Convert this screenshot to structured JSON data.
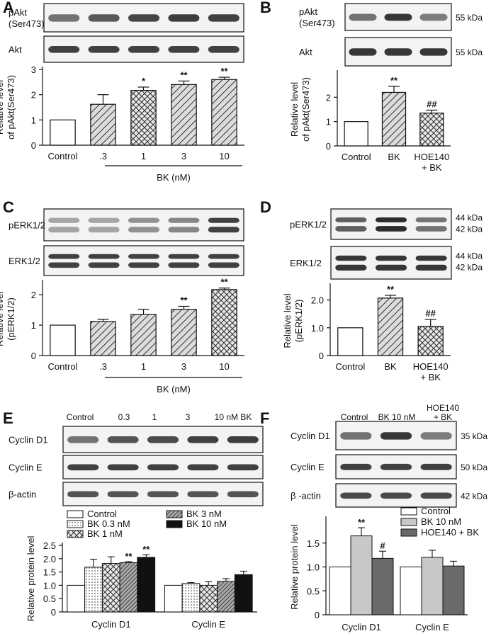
{
  "panels": {
    "A": {
      "letter": "A",
      "blots": [
        {
          "label_lines": [
            "pAkt",
            "(Ser473)"
          ],
          "lanes": 5,
          "bands": 1,
          "shade": [
            0.55,
            0.68,
            0.78,
            0.82,
            0.8
          ]
        },
        {
          "label_lines": [
            "Akt"
          ],
          "lanes": 5,
          "bands": 1,
          "shade": [
            0.8,
            0.8,
            0.8,
            0.8,
            0.8
          ]
        }
      ],
      "ylabel_lines": [
        "Relative level",
        "of pAkt(Ser473)"
      ],
      "group_label": "BK (nM)",
      "chart_data": {
        "type": "bar",
        "categories": [
          "Control",
          ".3",
          "1",
          "3",
          "10"
        ],
        "values": [
          1.0,
          1.62,
          2.17,
          2.4,
          2.6
        ],
        "errors": [
          0,
          0.38,
          0.13,
          0.14,
          0.09
        ],
        "significance": [
          "",
          "",
          "*",
          "**",
          "**"
        ],
        "patterns": [
          "white",
          "diag",
          "cross",
          "diag",
          "diag"
        ],
        "ylim": [
          0,
          3
        ],
        "yticks": [
          0,
          1,
          2,
          3
        ]
      }
    },
    "B": {
      "letter": "B",
      "blots": [
        {
          "label_lines": [
            "pAkt",
            "(Ser473)"
          ],
          "lanes": 3,
          "bands": 1,
          "shade": [
            0.55,
            0.85,
            0.5
          ],
          "kda": [
            "55 kDa"
          ]
        },
        {
          "label_lines": [
            "Akt"
          ],
          "lanes": 3,
          "bands": 1,
          "shade": [
            0.85,
            0.85,
            0.85
          ],
          "kda": [
            "55 kDa"
          ]
        }
      ],
      "ylabel_lines": [
        "Relative level",
        "of pAkt(Ser473)"
      ],
      "chart_data": {
        "type": "bar",
        "categories": [
          "Control",
          "BK",
          "HOE140\n+ BK"
        ],
        "values": [
          1.0,
          2.2,
          1.35
        ],
        "errors": [
          0,
          0.25,
          0.12
        ],
        "significance": [
          "",
          "**",
          "##"
        ],
        "patterns": [
          "white",
          "diag",
          "cross"
        ],
        "ylim": [
          0,
          3
        ],
        "yticks": [
          0,
          1,
          2
        ]
      }
    },
    "C": {
      "letter": "C",
      "blots": [
        {
          "label_lines": [
            "pERK1/2"
          ],
          "lanes": 5,
          "bands": 2,
          "shade": [
            0.3,
            0.3,
            0.4,
            0.45,
            0.8
          ]
        },
        {
          "label_lines": [
            "ERK1/2"
          ],
          "lanes": 5,
          "bands": 2,
          "shade": [
            0.8,
            0.8,
            0.8,
            0.8,
            0.8
          ]
        }
      ],
      "ylabel_lines": [
        "Relative level",
        "(pERK1/2)"
      ],
      "group_label": "BK (nM)",
      "chart_data": {
        "type": "bar",
        "categories": [
          "Control",
          ".3",
          "1",
          "3",
          "10"
        ],
        "values": [
          1.0,
          1.12,
          1.35,
          1.52,
          2.17
        ],
        "errors": [
          0,
          0.07,
          0.17,
          0.1,
          0.05
        ],
        "significance": [
          "",
          "",
          "",
          "**",
          "**"
        ],
        "patterns": [
          "white",
          "diag",
          "diag",
          "diag",
          "cross"
        ],
        "ylim": [
          0,
          2.4
        ],
        "yticks": [
          0,
          1,
          2
        ]
      }
    },
    "D": {
      "letter": "D",
      "blots": [
        {
          "label_lines": [
            "pERK1/2"
          ],
          "lanes": 3,
          "bands": 2,
          "shade": [
            0.65,
            0.9,
            0.55
          ],
          "kda": [
            "44 kDa",
            "42 kDa"
          ]
        },
        {
          "label_lines": [
            "ERK1/2"
          ],
          "lanes": 3,
          "bands": 2,
          "shade": [
            0.85,
            0.85,
            0.85
          ],
          "kda": [
            "44 kDa",
            "42 kDa"
          ]
        }
      ],
      "ylabel_lines": [
        "Relative level",
        "(pERK1/2)"
      ],
      "chart_data": {
        "type": "bar",
        "categories": [
          "Control",
          "BK",
          "HOE140\n+ BK"
        ],
        "values": [
          1.0,
          2.07,
          1.05
        ],
        "errors": [
          0,
          0.1,
          0.25
        ],
        "significance": [
          "",
          "**",
          "##"
        ],
        "patterns": [
          "white",
          "diag",
          "cross"
        ],
        "ylim": [
          0,
          2.5
        ],
        "yticks": [
          0,
          1,
          2
        ],
        "ytick_labels": [
          "0",
          "1.0",
          "2.0"
        ]
      }
    },
    "E": {
      "letter": "E",
      "lane_headers": [
        "Control",
        "0.3",
        "1",
        "3",
        "10 nM BK"
      ],
      "blots": [
        {
          "label_lines": [
            "Cyclin D1"
          ],
          "lanes": 5,
          "bands": 1,
          "shade": [
            0.55,
            0.7,
            0.75,
            0.8,
            0.82
          ]
        },
        {
          "label_lines": [
            "Cyclin E"
          ],
          "lanes": 5,
          "bands": 1,
          "shade": [
            0.8,
            0.8,
            0.8,
            0.8,
            0.8
          ]
        },
        {
          "label_lines": [
            "β-actin"
          ],
          "lanes": 5,
          "bands": 1,
          "shade": [
            0.7,
            0.7,
            0.7,
            0.7,
            0.7
          ]
        }
      ],
      "ylabel_lines": [
        "Relative protein level"
      ],
      "chart_data": {
        "type": "bar",
        "categories": [
          "Cyclin D1",
          "Cyclin E"
        ],
        "series": [
          {
            "name": "Control",
            "pattern": "white",
            "values": [
              1.0,
              1.0
            ],
            "errors": [
              0,
              0
            ]
          },
          {
            "name": "BK 0.3 nM",
            "pattern": "dots",
            "values": [
              1.68,
              1.07
            ],
            "errors": [
              0.3,
              0.03
            ]
          },
          {
            "name": "BK 1 nM",
            "pattern": "cross",
            "values": [
              1.82,
              1.0
            ],
            "errors": [
              0.25,
              0.13
            ]
          },
          {
            "name": "BK 3 nM",
            "pattern": "diagdense",
            "values": [
              1.85,
              1.15
            ],
            "errors": [
              0.04,
              0.1
            ]
          },
          {
            "name": "BK 10 nM",
            "pattern": "black",
            "values": [
              2.05,
              1.4
            ],
            "errors": [
              0.1,
              0.13
            ]
          }
        ],
        "significance": [
          [
            "",
            "",
            "",
            "**",
            "**"
          ],
          [
            "",
            "",
            "",
            "",
            ""
          ]
        ],
        "ylim": [
          0,
          2.5
        ],
        "yticks": [
          0,
          0.5,
          1.0,
          1.5,
          2.0,
          2.5
        ],
        "ytick_labels": [
          "0",
          "0.5",
          "1.0",
          "1.5",
          "2.0",
          "2.5"
        ]
      }
    },
    "F": {
      "letter": "F",
      "lane_headers": [
        "Control",
        "BK 10 nM",
        "HOE140\n+ BK"
      ],
      "blots": [
        {
          "label_lines": [
            "Cyclin D1"
          ],
          "lanes": 3,
          "bands": 1,
          "shade": [
            0.55,
            0.85,
            0.5
          ],
          "kda": [
            "35 kDa"
          ]
        },
        {
          "label_lines": [
            "Cyclin E"
          ],
          "lanes": 3,
          "bands": 1,
          "shade": [
            0.8,
            0.8,
            0.8
          ],
          "kda": [
            "50 kDa"
          ]
        },
        {
          "label_lines": [
            "β -actin"
          ],
          "lanes": 3,
          "bands": 1,
          "shade": [
            0.75,
            0.75,
            0.75
          ],
          "kda": [
            "42 kDa"
          ]
        }
      ],
      "ylabel_lines": [
        "Relative protein level"
      ],
      "chart_data": {
        "type": "bar",
        "categories": [
          "Cyclin D1",
          "Cyclin E"
        ],
        "series": [
          {
            "name": "Control",
            "pattern": "white",
            "values": [
              1.0,
              1.0
            ],
            "errors": [
              0,
              0
            ]
          },
          {
            "name": "BK 10 nM",
            "pattern": "lightgray",
            "values": [
              1.65,
              1.2
            ],
            "errors": [
              0.17,
              0.15
            ]
          },
          {
            "name": "HOE140 + BK",
            "pattern": "darkgray",
            "values": [
              1.18,
              1.02
            ],
            "errors": [
              0.15,
              0.1
            ]
          }
        ],
        "significance": [
          [
            "",
            "**",
            "#"
          ],
          [
            "",
            "",
            ""
          ]
        ],
        "ylim": [
          0,
          2.0
        ],
        "yticks": [
          0,
          0.5,
          1.0,
          1.5
        ],
        "ytick_labels": [
          "0",
          "0.5",
          "1.0",
          "1.5"
        ]
      }
    }
  }
}
